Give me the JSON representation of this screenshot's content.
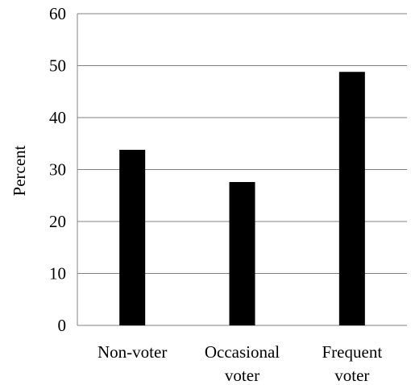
{
  "chart_data": {
    "type": "bar",
    "categories": [
      [
        "Non-voter"
      ],
      [
        "Occasional",
        "voter"
      ],
      [
        "Frequent",
        "voter"
      ]
    ],
    "values": [
      33.8,
      27.6,
      48.8
    ],
    "title": "",
    "xlabel": "",
    "ylabel": "Percent",
    "ylim": [
      0,
      60
    ],
    "yticks": [
      0,
      10,
      20,
      30,
      40,
      50,
      60
    ],
    "grid": true,
    "bar_color": "#000000",
    "grid_color": "#808080"
  }
}
